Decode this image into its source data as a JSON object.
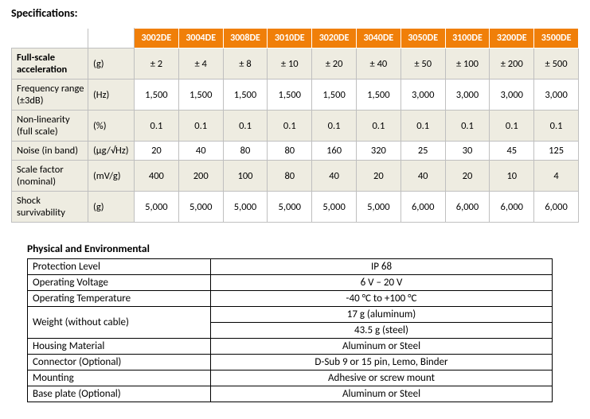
{
  "title": "Specifications:",
  "spec_table": {
    "header_bg": "#f07f09",
    "header_fg": "#ffffff",
    "alt_row_bg": "#eeece1",
    "border_color": "#bfbfbf",
    "models": [
      "3002DE",
      "3004DE",
      "3008DE",
      "3010DE",
      "3020DE",
      "3040DE",
      "3050DE",
      "3100DE",
      "3200DE",
      "3500DE"
    ],
    "rows": [
      {
        "label": "Full-scale acceleration",
        "unit": "(g)",
        "values": [
          "± 2",
          "± 4",
          "± 8",
          "± 10",
          "± 20",
          "± 40",
          "± 50",
          "± 100",
          "± 200",
          "± 500"
        ],
        "bold_label": true
      },
      {
        "label": "Frequency range (±3dB)",
        "unit": "(Hz)",
        "values": [
          "1,500",
          "1,500",
          "1,500",
          "1,500",
          "1,500",
          "1,500",
          "3,000",
          "3,000",
          "3,000",
          "3,000"
        ]
      },
      {
        "label": "Non-linearity (full scale)",
        "unit": "(%)",
        "values": [
          "0.1",
          "0.1",
          "0.1",
          "0.1",
          "0.1",
          "0.1",
          "0.1",
          "0.1",
          "0.1",
          "0.1"
        ]
      },
      {
        "label": "Noise (in band)",
        "unit": "(µg/√Hz)",
        "values": [
          "20",
          "40",
          "80",
          "80",
          "160",
          "320",
          "25",
          "30",
          "45",
          "125"
        ]
      },
      {
        "label": "Scale factor (nominal)",
        "unit": "(mV/g)",
        "values": [
          "400",
          "200",
          "100",
          "80",
          "40",
          "20",
          "40",
          "20",
          "10",
          "4"
        ]
      },
      {
        "label": "Shock survivability",
        "unit": "(g)",
        "values": [
          "5,000",
          "5,000",
          "5,000",
          "5,000",
          "5,000",
          "5,000",
          "6,000",
          "6,000",
          "6,000",
          "6,000"
        ]
      }
    ]
  },
  "phys_heading": "Physical and Environmental",
  "phys_table": {
    "border_color": "#000000",
    "rows": [
      {
        "label": "Protection Level",
        "lines": [
          "IP 68"
        ]
      },
      {
        "label": "Operating Voltage",
        "lines": [
          "6 V – 20 V"
        ]
      },
      {
        "label": "Operating Temperature",
        "lines": [
          "-40 °C to +100 °C"
        ]
      },
      {
        "label": "Weight (without cable)",
        "lines": [
          "17 g (aluminum)",
          "43.5 g (steel)"
        ]
      },
      {
        "label": "Housing Material",
        "lines": [
          "Aluminum or Steel"
        ]
      },
      {
        "label": "Connector (Optional)",
        "lines": [
          "D-Sub 9 or 15 pin, Lemo, Binder"
        ]
      },
      {
        "label": "Mounting",
        "lines": [
          "Adhesive or screw mount"
        ]
      },
      {
        "label": "Base plate (Optional)",
        "lines": [
          "Aluminum or Steel"
        ]
      }
    ]
  }
}
